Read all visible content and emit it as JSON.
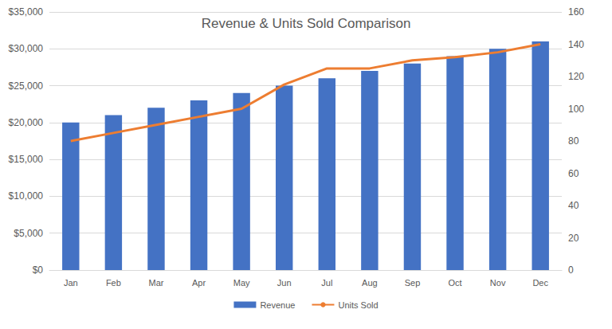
{
  "chart_data": {
    "type": "bar",
    "title": "Revenue & Units Sold Comparison",
    "categories": [
      "Jan",
      "Feb",
      "Mar",
      "Apr",
      "May",
      "Jun",
      "Jul",
      "Aug",
      "Sep",
      "Oct",
      "Nov",
      "Dec"
    ],
    "series": [
      {
        "name": "Revenue",
        "type": "bar",
        "color": "#4472c4",
        "values": [
          20000,
          21000,
          22000,
          23000,
          24000,
          25000,
          26000,
          27000,
          28000,
          29000,
          30000,
          31000
        ]
      },
      {
        "name": "Units Sold",
        "type": "line",
        "axis": "y2",
        "color": "#ed7d31",
        "values": [
          80,
          85,
          90,
          95,
          100,
          115,
          125,
          125,
          130,
          132,
          135,
          140
        ]
      }
    ],
    "ylim": [
      0,
      35000
    ],
    "yticks": [
      {
        "value": 0,
        "label": "$0"
      },
      {
        "value": 5000,
        "label": "$5,000"
      },
      {
        "value": 10000,
        "label": "$10,000"
      },
      {
        "value": 15000,
        "label": "$15,000"
      },
      {
        "value": 20000,
        "label": "$20,000"
      },
      {
        "value": 25000,
        "label": "$25,000"
      },
      {
        "value": 30000,
        "label": "$30,000"
      },
      {
        "value": 35000,
        "label": "$35,000"
      }
    ],
    "y2lim": [
      0,
      160
    ],
    "y2ticks": [
      0,
      20,
      40,
      60,
      80,
      100,
      120,
      140,
      160
    ],
    "grid": true,
    "legend": "bottom"
  }
}
